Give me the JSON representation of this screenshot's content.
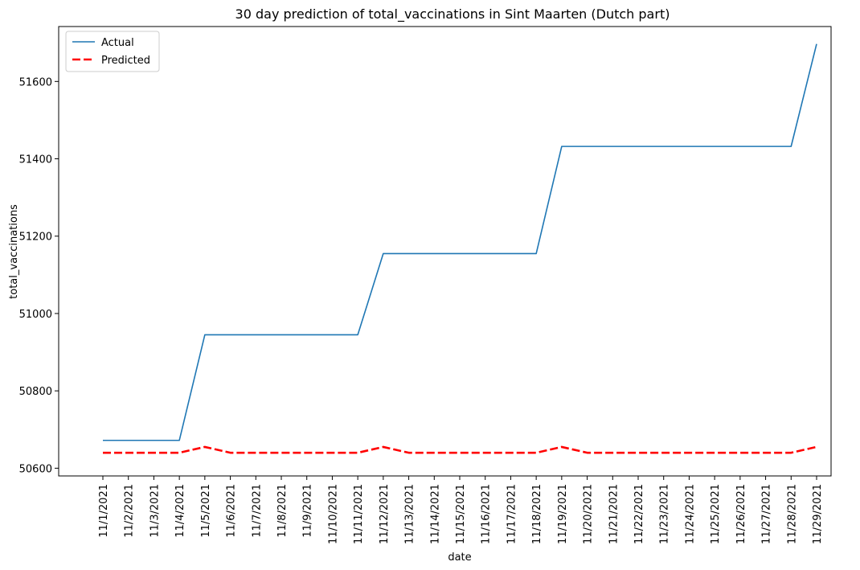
{
  "chart_data": {
    "type": "line",
    "title": "30 day prediction of total_vaccinations in Sint Maarten (Dutch part)",
    "xlabel": "date",
    "ylabel": "total_vaccinations",
    "categories": [
      "11/1/2021",
      "11/2/2021",
      "11/3/2021",
      "11/4/2021",
      "11/5/2021",
      "11/6/2021",
      "11/7/2021",
      "11/8/2021",
      "11/9/2021",
      "11/10/2021",
      "11/11/2021",
      "11/12/2021",
      "11/13/2021",
      "11/14/2021",
      "11/15/2021",
      "11/16/2021",
      "11/17/2021",
      "11/18/2021",
      "11/19/2021",
      "11/20/2021",
      "11/21/2021",
      "11/22/2021",
      "11/23/2021",
      "11/24/2021",
      "11/25/2021",
      "11/26/2021",
      "11/27/2021",
      "11/28/2021",
      "11/29/2021"
    ],
    "yticks": [
      50600,
      50800,
      51000,
      51200,
      51400,
      51600
    ],
    "ylim": [
      50580,
      51742
    ],
    "legend_position": "top-left",
    "grid": false,
    "series": [
      {
        "name": "Actual",
        "color": "#1f77b4",
        "style": "solid",
        "values": [
          50672,
          50672,
          50672,
          50672,
          50945,
          50945,
          50945,
          50945,
          50945,
          50945,
          50945,
          51155,
          51155,
          51155,
          51155,
          51155,
          51155,
          51155,
          51432,
          51432,
          51432,
          51432,
          51432,
          51432,
          51432,
          51432,
          51432,
          51432,
          51697
        ]
      },
      {
        "name": "Predicted",
        "color": "#ff0000",
        "style": "dashed",
        "values": [
          50640,
          50640,
          50640,
          50640,
          50655,
          50640,
          50640,
          50640,
          50640,
          50640,
          50640,
          50655,
          50640,
          50640,
          50640,
          50640,
          50640,
          50640,
          50655,
          50640,
          50640,
          50640,
          50640,
          50640,
          50640,
          50640,
          50640,
          50640,
          50655
        ]
      }
    ]
  }
}
